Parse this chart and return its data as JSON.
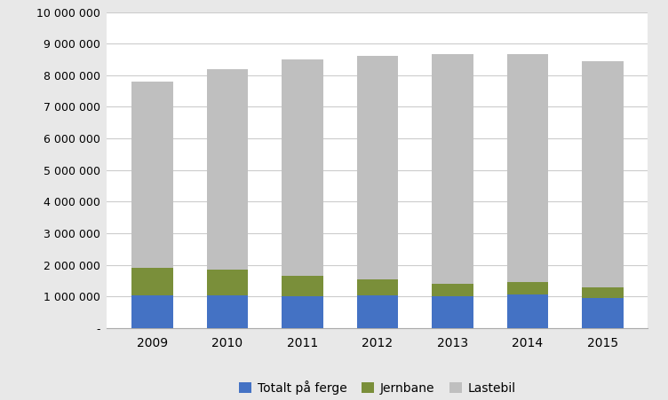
{
  "years": [
    2009,
    2010,
    2011,
    2012,
    2013,
    2014,
    2015
  ],
  "ferge": [
    1020000,
    1040000,
    1010000,
    1020000,
    1000000,
    1050000,
    950000
  ],
  "jernbane": [
    870000,
    820000,
    640000,
    510000,
    400000,
    400000,
    340000
  ],
  "lastebil": [
    5910000,
    6340000,
    6850000,
    7070000,
    7260000,
    7220000,
    7160000
  ],
  "colors": {
    "ferge": "#4472C4",
    "jernbane": "#7a8f3a",
    "lastebil": "#BFBFBF"
  },
  "legend_labels": [
    "Totalt på ferge",
    "Jernbane",
    "Lastebil"
  ],
  "ylim": [
    0,
    10000000
  ],
  "yticks": [
    0,
    1000000,
    2000000,
    3000000,
    4000000,
    5000000,
    6000000,
    7000000,
    8000000,
    9000000,
    10000000
  ],
  "background_color": "#e8e8e8",
  "plot_bg_color": "#ffffff",
  "grid_color": "#cccccc",
  "bar_width": 0.55,
  "figsize": [
    7.52,
    4.51
  ],
  "dpi": 100
}
